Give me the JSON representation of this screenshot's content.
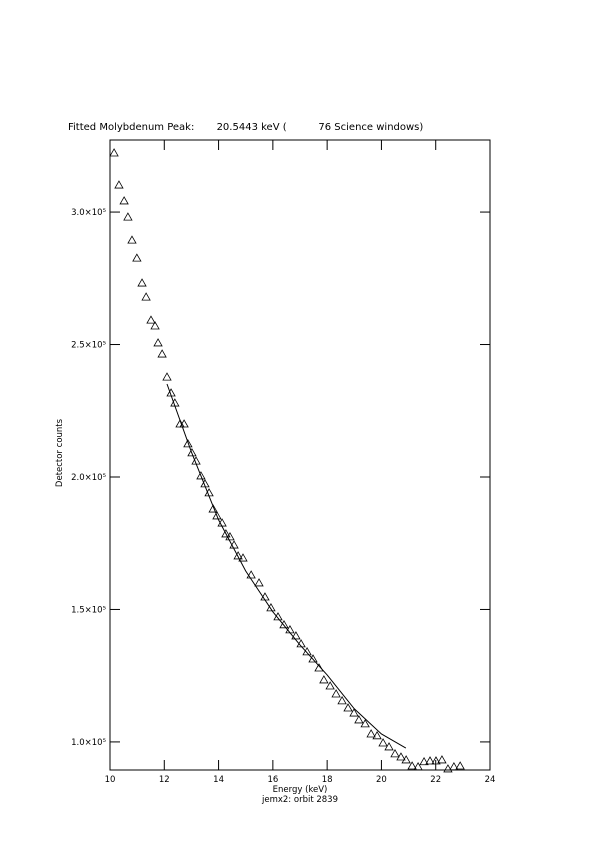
{
  "chart_data": {
    "type": "scatter",
    "title": "Fitted Molybdenum Peak:       20.5443 keV (          76 Science windows)",
    "x_label": "Energy (keV)",
    "subtitle": "jemx2: orbit 2839",
    "y_label": "Detector counts",
    "xlim": [
      10,
      24
    ],
    "xticks": [
      10,
      12,
      14,
      16,
      18,
      20,
      22,
      24
    ],
    "ylim": [
      89400,
      327200
    ],
    "yticks": [
      {
        "value": 100000,
        "label": "1.0×10⁵"
      },
      {
        "value": 150000,
        "label": "1.5×10⁵"
      },
      {
        "value": 200000,
        "label": "2.0×10⁵"
      },
      {
        "value": 250000,
        "label": "2.5×10⁵"
      },
      {
        "value": 300000,
        "label": "3.0×10⁵"
      }
    ],
    "series": [
      {
        "type": "scatter",
        "marker": "triangle",
        "color": "#000000",
        "x": [
          10.15,
          10.33,
          10.52,
          10.66,
          10.81,
          10.99,
          11.18,
          11.33,
          11.51,
          11.66,
          11.77,
          11.92,
          12.1,
          12.25,
          12.39,
          12.58,
          12.73,
          12.87,
          13.02,
          13.17,
          13.35,
          13.5,
          13.65,
          13.8,
          13.94,
          14.13,
          14.27,
          14.42,
          14.57,
          14.72,
          14.9,
          15.2,
          15.49,
          15.71,
          15.93,
          16.19,
          16.41,
          16.63,
          16.85,
          17.04,
          17.26,
          17.48,
          17.7,
          17.88,
          18.11,
          18.33,
          18.55,
          18.77,
          18.99,
          19.17,
          19.4,
          19.62,
          19.84,
          20.06,
          20.28,
          20.5,
          20.72,
          20.91,
          21.13,
          21.35,
          21.57,
          21.79,
          22.01,
          22.23,
          22.45,
          22.67,
          22.9
        ],
        "values": [
          322300,
          310200,
          304200,
          298100,
          289400,
          282600,
          273200,
          267900,
          259200,
          257000,
          250600,
          246400,
          237700,
          231700,
          227900,
          220000,
          220000,
          212500,
          209100,
          206000,
          200400,
          197400,
          194000,
          187900,
          185300,
          182600,
          178500,
          177400,
          174300,
          170200,
          169400,
          163000,
          160000,
          154700,
          150600,
          147200,
          144200,
          142300,
          140000,
          137000,
          134000,
          131300,
          127900,
          123400,
          121100,
          118100,
          115500,
          112800,
          110900,
          108300,
          106800,
          103000,
          102300,
          99600,
          98100,
          95500,
          94300,
          93200,
          90900,
          90600,
          92500,
          92800,
          92800,
          93200,
          89800,
          90600,
          90900
        ]
      },
      {
        "type": "line",
        "color": "#000000",
        "x": [
          12.1,
          13,
          14,
          15,
          16,
          17,
          18,
          19,
          20,
          20.9
        ],
        "values": [
          235100,
          209400,
          183800,
          164500,
          149100,
          136600,
          125300,
          112500,
          103000,
          97700
        ]
      }
    ]
  }
}
